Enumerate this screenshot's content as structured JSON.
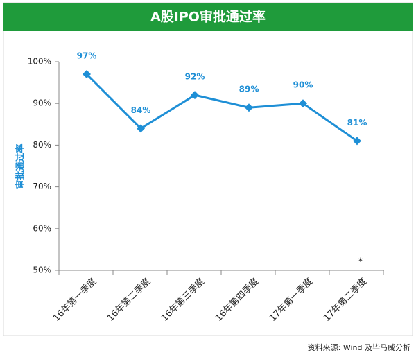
{
  "chart_data": {
    "type": "line",
    "title": "A股IPO审批通过率",
    "y_label": "审批通过率",
    "categories": [
      "16年第一季度",
      "16年第二季度",
      "16年第三季度",
      "16年第四季度",
      "17年第一季度",
      "17年第二季度"
    ],
    "series": [
      {
        "name": "审批通过率",
        "color": "#1e8fd6",
        "values": [
          97,
          84,
          92,
          89,
          90,
          81
        ],
        "value_labels": [
          "97%",
          "84%",
          "92%",
          "89%",
          "90%",
          "81%"
        ]
      }
    ],
    "ylim": [
      50,
      100
    ],
    "yticks": [
      {
        "value": 50,
        "label": "50%"
      },
      {
        "value": 60,
        "label": "60%"
      },
      {
        "value": 70,
        "label": "70%"
      },
      {
        "value": 80,
        "label": "80%"
      },
      {
        "value": 90,
        "label": "90%"
      },
      {
        "value": 100,
        "label": "100%"
      }
    ],
    "annotation": "*",
    "source": "资料来源: Wind 及毕马威分析"
  }
}
